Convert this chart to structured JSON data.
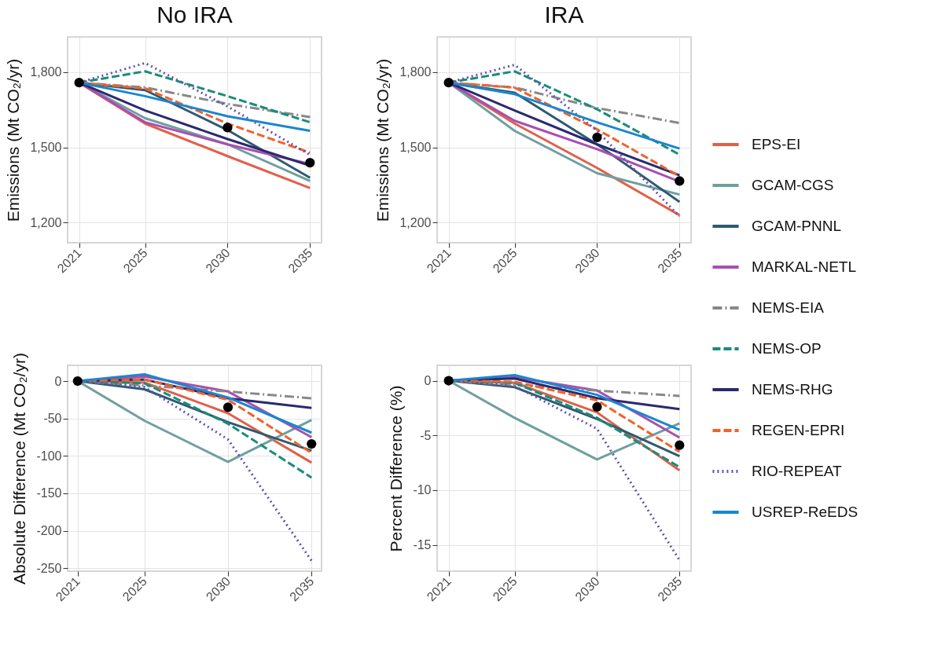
{
  "chart_data": [
    {
      "type": "line",
      "title": "No IRA",
      "ylabel": "Emissions (Mt CO₂/yr)",
      "x": [
        2021,
        2025,
        2030,
        2035
      ],
      "xlim": [
        2020.3,
        2035.7
      ],
      "xticks": [
        2021,
        2025,
        2030,
        2035
      ],
      "ylim": [
        1120,
        1940
      ],
      "yticks": [
        {
          "value": 1200,
          "label": "1,200"
        },
        {
          "value": 1500,
          "label": "1,500"
        },
        {
          "value": 1800,
          "label": "1,800"
        }
      ],
      "grid": true,
      "legend": "right",
      "series": [
        {
          "name": "EPS-EI",
          "color": "#e0604a",
          "line_style": "solid",
          "values": [
            1758,
            1595,
            1465,
            1338
          ]
        },
        {
          "name": "GCAM-CGS",
          "color": "#6f9fa0",
          "line_style": "solid",
          "values": [
            1758,
            1616,
            1512,
            1366
          ]
        },
        {
          "name": "GCAM-PNNL",
          "color": "#2e5a72",
          "line_style": "solid",
          "values": [
            1758,
            1728,
            1569,
            1379
          ]
        },
        {
          "name": "MARKAL-NETL",
          "color": "#a94fb0",
          "line_style": "solid",
          "values": [
            1758,
            1600,
            1512,
            1434
          ]
        },
        {
          "name": "NEMS-EIA",
          "color": "#888888",
          "line_style": "dashdot",
          "values": [
            1758,
            1739,
            1673,
            1621
          ]
        },
        {
          "name": "NEMS-OP",
          "color": "#1a8c7a",
          "line_style": "dashed",
          "values": [
            1758,
            1803,
            1704,
            1600
          ]
        },
        {
          "name": "NEMS-RHG",
          "color": "#2b2a6e",
          "line_style": "solid",
          "values": [
            1758,
            1647,
            1533,
            1427
          ]
        },
        {
          "name": "REGEN-EPRI",
          "color": "#f0622a",
          "line_style": "dashed",
          "values": [
            1758,
            1735,
            1595,
            1479
          ]
        },
        {
          "name": "RIO-REPEAT",
          "color": "#6552b0",
          "line_style": "dotted",
          "values": [
            1758,
            1836,
            1663,
            1470
          ]
        },
        {
          "name": "USREP-ReEDS",
          "color": "#1a86d0",
          "line_style": "solid",
          "values": [
            1758,
            1704,
            1624,
            1566
          ]
        },
        {
          "type": "scatter",
          "color": "#000000",
          "marker": "circle",
          "x": [
            2021,
            2030,
            2035
          ],
          "values": [
            1758,
            1579,
            1439
          ]
        }
      ]
    },
    {
      "type": "line",
      "title": "IRA",
      "ylabel": "Emissions (Mt CO₂/yr)",
      "x": [
        2021,
        2025,
        2030,
        2035
      ],
      "xlim": [
        2020.3,
        2035.7
      ],
      "xticks": [
        2021,
        2025,
        2030,
        2035
      ],
      "ylim": [
        1120,
        1940
      ],
      "yticks": [
        {
          "value": 1200,
          "label": "1,200"
        },
        {
          "value": 1500,
          "label": "1,500"
        },
        {
          "value": 1800,
          "label": "1,800"
        }
      ],
      "grid": true,
      "series": [
        {
          "name": "EPS-EI",
          "color": "#e0604a",
          "line_style": "solid",
          "values": [
            1758,
            1595,
            1418,
            1230
          ]
        },
        {
          "name": "GCAM-CGS",
          "color": "#6f9fa0",
          "line_style": "solid",
          "values": [
            1758,
            1566,
            1397,
            1312
          ]
        },
        {
          "name": "GCAM-PNNL",
          "color": "#2e5a72",
          "line_style": "solid",
          "values": [
            1758,
            1718,
            1512,
            1283
          ]
        },
        {
          "name": "MARKAL-NETL",
          "color": "#a94fb0",
          "line_style": "solid",
          "values": [
            1758,
            1606,
            1493,
            1364
          ]
        },
        {
          "name": "NEMS-EIA",
          "color": "#888888",
          "line_style": "dashdot",
          "values": [
            1758,
            1739,
            1657,
            1597
          ]
        },
        {
          "name": "NEMS-OP",
          "color": "#1a8c7a",
          "line_style": "dashed",
          "values": [
            1758,
            1803,
            1652,
            1471
          ]
        },
        {
          "name": "NEMS-RHG",
          "color": "#2b2a6e",
          "line_style": "solid",
          "values": [
            1758,
            1647,
            1512,
            1389
          ]
        },
        {
          "name": "REGEN-EPRI",
          "color": "#f0622a",
          "line_style": "dashed",
          "values": [
            1758,
            1738,
            1572,
            1385
          ]
        },
        {
          "name": "RIO-REPEAT",
          "color": "#6552b0",
          "line_style": "dotted",
          "values": [
            1758,
            1829,
            1566,
            1225
          ]
        },
        {
          "name": "USREP-ReEDS",
          "color": "#1a86d0",
          "line_style": "solid",
          "values": [
            1758,
            1712,
            1600,
            1495
          ]
        },
        {
          "type": "scatter",
          "color": "#000000",
          "marker": "circle",
          "x": [
            2021,
            2030,
            2035
          ],
          "values": [
            1758,
            1540,
            1366
          ]
        }
      ]
    },
    {
      "type": "line",
      "ylabel": "Absolute Difference (Mt CO₂/yr)",
      "x": [
        2021,
        2025,
        2030,
        2035
      ],
      "xlim": [
        2020.4,
        2035.6
      ],
      "xticks": [
        2021,
        2025,
        2030,
        2035
      ],
      "ylim": [
        -254,
        21
      ],
      "yticks": [
        -250,
        -200,
        -150,
        -100,
        -50,
        0
      ],
      "grid": true,
      "series": [
        {
          "name": "EPS-EI",
          "color": "#e0604a",
          "line_style": "solid",
          "values": [
            0,
            -2,
            -43,
            -109
          ]
        },
        {
          "name": "GCAM-CGS",
          "color": "#6f9fa0",
          "line_style": "solid",
          "values": [
            0,
            -53,
            -108,
            -52
          ]
        },
        {
          "name": "GCAM-PNNL",
          "color": "#2e5a72",
          "line_style": "solid",
          "values": [
            0,
            -11,
            -55,
            -93
          ]
        },
        {
          "name": "MARKAL-NETL",
          "color": "#a94fb0",
          "line_style": "solid",
          "values": [
            0,
            6,
            -14,
            -75
          ]
        },
        {
          "name": "NEMS-EIA",
          "color": "#888888",
          "line_style": "dashdot",
          "values": [
            0,
            -6,
            -14,
            -23
          ]
        },
        {
          "name": "NEMS-OP",
          "color": "#1a8c7a",
          "line_style": "dashed",
          "values": [
            0,
            -3,
            -57,
            -129
          ]
        },
        {
          "name": "NEMS-RHG",
          "color": "#2b2a6e",
          "line_style": "solid",
          "values": [
            0,
            2,
            -23,
            -36
          ]
        },
        {
          "name": "REGEN-EPRI",
          "color": "#f0622a",
          "line_style": "dashed",
          "values": [
            0,
            2,
            -25,
            -96
          ]
        },
        {
          "name": "RIO-REPEAT",
          "color": "#6552b0",
          "line_style": "dotted",
          "values": [
            0,
            -8,
            -78,
            -240
          ]
        },
        {
          "name": "USREP-ReEDS",
          "color": "#1a86d0",
          "line_style": "solid",
          "values": [
            0,
            9,
            -22,
            -69
          ]
        },
        {
          "type": "scatter",
          "color": "#000000",
          "marker": "circle",
          "x": [
            2021,
            2030,
            2035
          ],
          "values": [
            0,
            -35,
            -84
          ]
        }
      ]
    },
    {
      "type": "line",
      "ylabel": "Percent Difference (%)",
      "x": [
        2021,
        2025,
        2030,
        2035
      ],
      "xlim": [
        2020.3,
        2035.7
      ],
      "xticks": [
        2021,
        2025,
        2030,
        2035
      ],
      "ylim": [
        -17.4,
        1.4
      ],
      "yticks": [
        -15,
        -10,
        -5,
        0
      ],
      "grid": true,
      "series": [
        {
          "name": "EPS-EI",
          "color": "#e0604a",
          "line_style": "solid",
          "values": [
            0,
            -0.2,
            -2.9,
            -8.2
          ]
        },
        {
          "name": "GCAM-CGS",
          "color": "#6f9fa0",
          "line_style": "solid",
          "values": [
            0,
            -3.4,
            -7.2,
            -3.9
          ]
        },
        {
          "name": "GCAM-PNNL",
          "color": "#2e5a72",
          "line_style": "solid",
          "values": [
            0,
            -0.6,
            -3.5,
            -6.9
          ]
        },
        {
          "name": "MARKAL-NETL",
          "color": "#a94fb0",
          "line_style": "solid",
          "values": [
            0,
            0.3,
            -0.9,
            -5.2
          ]
        },
        {
          "name": "NEMS-EIA",
          "color": "#888888",
          "line_style": "dashdot",
          "values": [
            0,
            -0.4,
            -0.9,
            -1.4
          ]
        },
        {
          "name": "NEMS-OP",
          "color": "#1a8c7a",
          "line_style": "dashed",
          "values": [
            0,
            -0.2,
            -3.4,
            -7.9
          ]
        },
        {
          "name": "NEMS-RHG",
          "color": "#2b2a6e",
          "line_style": "solid",
          "values": [
            0,
            0.2,
            -1.6,
            -2.6
          ]
        },
        {
          "name": "REGEN-EPRI",
          "color": "#f0622a",
          "line_style": "dashed",
          "values": [
            0,
            -0.1,
            -1.8,
            -6.5
          ]
        },
        {
          "name": "RIO-REPEAT",
          "color": "#6552b0",
          "line_style": "dotted",
          "values": [
            0,
            -0.5,
            -4.4,
            -16.4
          ]
        },
        {
          "name": "USREP-ReEDS",
          "color": "#1a86d0",
          "line_style": "solid",
          "values": [
            0,
            0.5,
            -1.3,
            -4.5
          ]
        },
        {
          "type": "scatter",
          "color": "#000000",
          "marker": "circle",
          "x": [
            2021,
            2030,
            2035
          ],
          "values": [
            0,
            -2.4,
            -5.9
          ]
        }
      ]
    }
  ]
}
